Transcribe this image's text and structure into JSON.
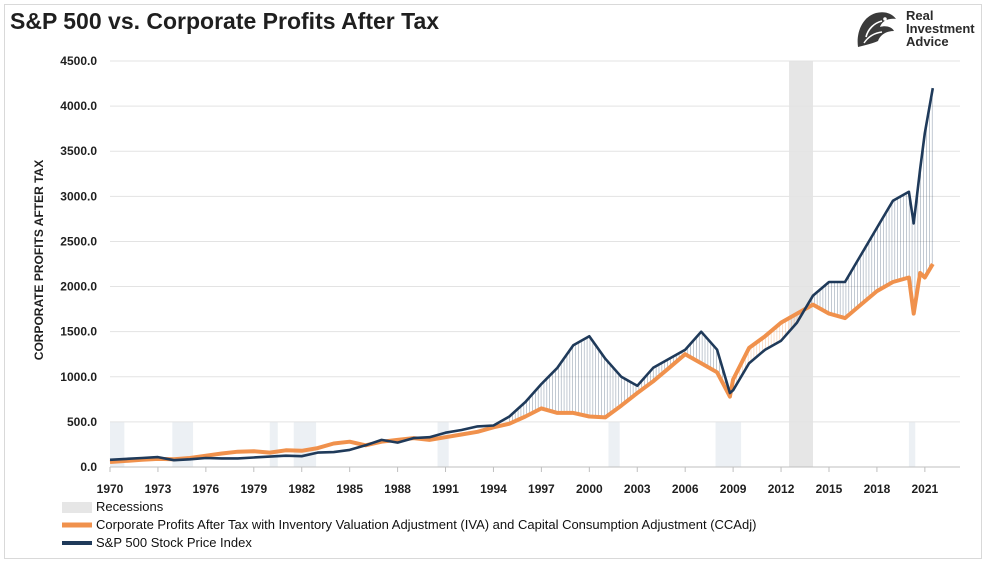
{
  "title": "S&P 500 vs. Corporate Profits After Tax",
  "logo": {
    "lines": [
      "Real",
      "Investment",
      "Advice"
    ]
  },
  "chart_data": {
    "type": "line",
    "title": "S&P 500 vs. Corporate Profits After Tax",
    "ylabel": "CORPORATE PROFITS AFTER TAX",
    "xlabel": "",
    "ylim": [
      0,
      4500
    ],
    "xlim": [
      1970,
      2023.2
    ],
    "y_ticks": [
      "0.0",
      "500.0",
      "1000.0",
      "1500.0",
      "2000.0",
      "2500.0",
      "3000.0",
      "3500.0",
      "4000.0",
      "4500.0"
    ],
    "x_ticks": [
      "1970",
      "1973",
      "1976",
      "1979",
      "1982",
      "1985",
      "1988",
      "1991",
      "1994",
      "1997",
      "2000",
      "2003",
      "2006",
      "2009",
      "2012",
      "2015",
      "2018",
      "2021"
    ],
    "grid": true,
    "legend_position": "bottom-left",
    "recessions": [
      {
        "start": 2012.5,
        "end": 2014.0,
        "shade": "band"
      },
      {
        "start": 1970.0,
        "end": 1970.9,
        "shade": "faint"
      },
      {
        "start": 1973.9,
        "end": 1975.2,
        "shade": "faint"
      },
      {
        "start": 1980.0,
        "end": 1980.5,
        "shade": "faint"
      },
      {
        "start": 1981.5,
        "end": 1982.9,
        "shade": "faint"
      },
      {
        "start": 1990.5,
        "end": 1991.2,
        "shade": "faint"
      },
      {
        "start": 2001.2,
        "end": 2001.9,
        "shade": "faint"
      },
      {
        "start": 2007.9,
        "end": 2009.5,
        "shade": "faint"
      },
      {
        "start": 2020.0,
        "end": 2020.4,
        "shade": "faint"
      }
    ],
    "series": [
      {
        "name": "Corporate Profits After Tax with Inventory Valuation Adjustment (IVA) and Capital Consumption Adjustment (CCAdj)",
        "color": "#f0914c",
        "x": [
          1970,
          1972,
          1973,
          1974,
          1975,
          1976,
          1977,
          1978,
          1979,
          1980,
          1981,
          1982,
          1983,
          1984,
          1985,
          1986,
          1987,
          1988,
          1989,
          1990,
          1991,
          1992,
          1993,
          1994,
          1995,
          1996,
          1997,
          1998,
          1999,
          2000,
          2001,
          2002,
          2003,
          2004,
          2005,
          2006,
          2007,
          2008,
          2008.8,
          2009,
          2010,
          2011,
          2012,
          2013,
          2014,
          2015,
          2016,
          2017,
          2018,
          2019,
          2020,
          2020.3,
          2020.7,
          2021,
          2021.5
        ],
        "values": [
          55,
          80,
          90,
          85,
          100,
          125,
          150,
          170,
          175,
          160,
          185,
          180,
          210,
          260,
          280,
          240,
          280,
          300,
          320,
          300,
          330,
          360,
          390,
          440,
          480,
          560,
          650,
          600,
          600,
          560,
          550,
          680,
          820,
          950,
          1100,
          1250,
          1150,
          1050,
          780,
          970,
          1320,
          1450,
          1600,
          1700,
          1800,
          1700,
          1650,
          1800,
          1950,
          2050,
          2100,
          1700,
          2150,
          2100,
          2250
        ]
      },
      {
        "name": "S&P 500 Stock Price Index",
        "color": "#1f3a5a",
        "x": [
          1970,
          1972,
          1973,
          1974,
          1975,
          1976,
          1977,
          1978,
          1979,
          1980,
          1981,
          1982,
          1983,
          1984,
          1985,
          1986,
          1987,
          1988,
          1989,
          1990,
          1991,
          1992,
          1993,
          1994,
          1995,
          1996,
          1997,
          1998,
          1999,
          2000,
          2001,
          2002,
          2003,
          2004,
          2005,
          2006,
          2007,
          2008,
          2008.8,
          2009,
          2010,
          2011,
          2012,
          2013,
          2014,
          2015,
          2016,
          2017,
          2018,
          2019,
          2020,
          2020.3,
          2020.7,
          2021,
          2021.5
        ],
        "values": [
          80,
          100,
          110,
          75,
          85,
          100,
          95,
          95,
          105,
          115,
          125,
          120,
          160,
          165,
          190,
          240,
          300,
          270,
          320,
          330,
          380,
          410,
          450,
          460,
          560,
          720,
          920,
          1100,
          1350,
          1450,
          1200,
          1000,
          900,
          1100,
          1200,
          1300,
          1500,
          1300,
          820,
          850,
          1150,
          1300,
          1400,
          1600,
          1900,
          2050,
          2050,
          2350,
          2650,
          2950,
          3050,
          2700,
          3300,
          3700,
          4200
        ]
      }
    ]
  },
  "legend": {
    "recessions_label": "Recessions",
    "profits_label": "Corporate Profits After Tax with Inventory Valuation Adjustment (IVA) and Capital Consumption Adjustment (CCAdj)",
    "sp500_label": "S&P 500 Stock Price Index"
  },
  "colors": {
    "profits": "#f0914c",
    "sp500": "#1f3a5a",
    "recession_band": "#e6e6e6",
    "recession_faint": "#c9d3e0",
    "gridline": "#e3e3e3"
  }
}
